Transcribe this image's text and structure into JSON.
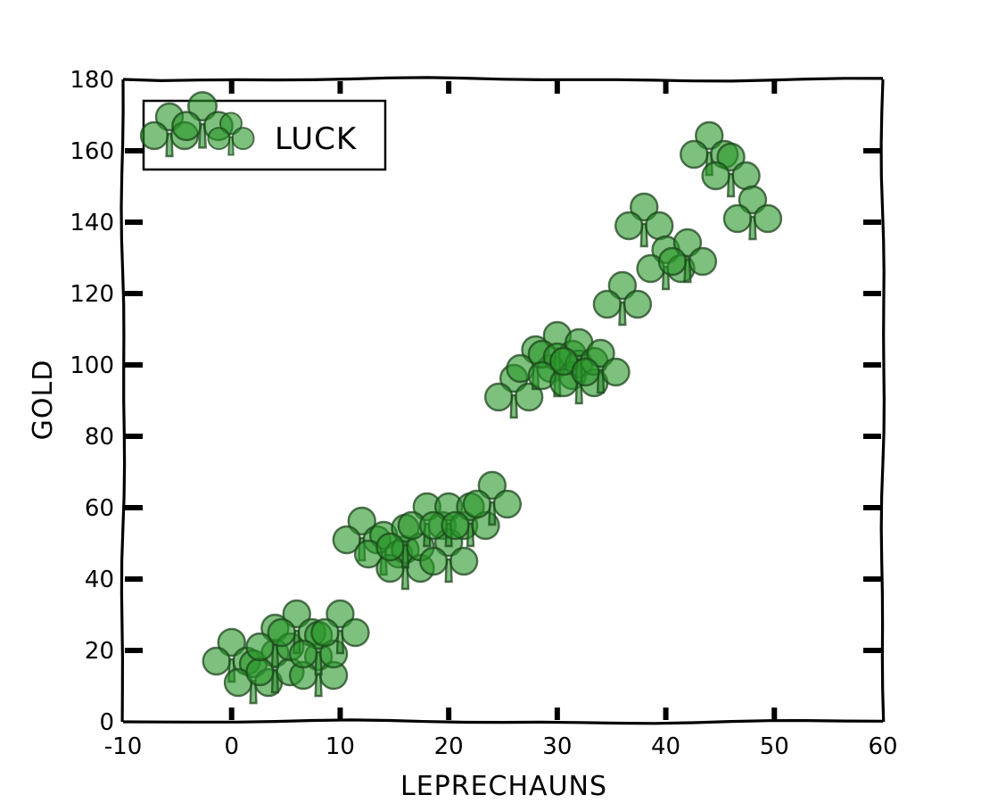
{
  "chart_data": {
    "type": "scatter",
    "xlabel": "LEPRECHAUNS",
    "ylabel": "GOLD",
    "xlim": [
      -10,
      60
    ],
    "ylim": [
      0,
      180
    ],
    "xticks": [
      "-10",
      "0",
      "10",
      "20",
      "30",
      "40",
      "50",
      "60"
    ],
    "yticks": [
      "0",
      "20",
      "40",
      "60",
      "80",
      "100",
      "120",
      "140",
      "160",
      "180"
    ],
    "legend": {
      "label": "LUCK",
      "placement": "top-left"
    },
    "marker": "clover",
    "color": "#2e9a2e",
    "series": [
      {
        "name": "LUCK",
        "points": [
          [
            0,
            18
          ],
          [
            2,
            12
          ],
          [
            4,
            15
          ],
          [
            4,
            22
          ],
          [
            6,
            26
          ],
          [
            8,
            14
          ],
          [
            8,
            20
          ],
          [
            10,
            26
          ],
          [
            12,
            52
          ],
          [
            14,
            48
          ],
          [
            16,
            44
          ],
          [
            16,
            50
          ],
          [
            18,
            56
          ],
          [
            20,
            46
          ],
          [
            20,
            56
          ],
          [
            22,
            56
          ],
          [
            24,
            62
          ],
          [
            26,
            92
          ],
          [
            28,
            100
          ],
          [
            30,
            104
          ],
          [
            30,
            98
          ],
          [
            32,
            96
          ],
          [
            32,
            102
          ],
          [
            34,
            99
          ],
          [
            36,
            118
          ],
          [
            38,
            140
          ],
          [
            40,
            128
          ],
          [
            42,
            130
          ],
          [
            44,
            160
          ],
          [
            46,
            154
          ],
          [
            48,
            142
          ]
        ]
      }
    ]
  }
}
